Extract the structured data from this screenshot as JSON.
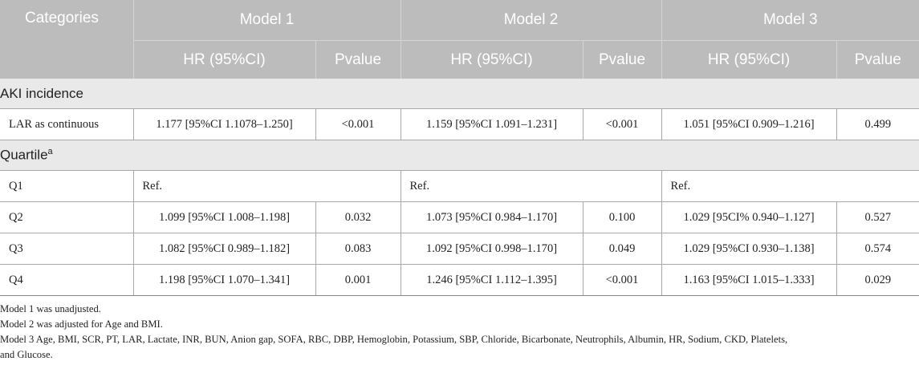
{
  "header": {
    "categories": "Categories",
    "models": [
      "Model 1",
      "Model 2",
      "Model 3"
    ],
    "hr_label": "HR (95%CI)",
    "p_label": "Pvalue"
  },
  "sections": {
    "aki": "AKI incidence",
    "quartile": "Quartile",
    "quartile_sup": "a"
  },
  "rows": {
    "lar": {
      "label": "LAR as continuous",
      "m1_hr": "1.177 [95%CI 1.1078–1.250]",
      "m1_p": "<0.001",
      "m2_hr": "1.159 [95%CI 1.091–1.231]",
      "m2_p": "<0.001",
      "m3_hr": "1.051 [95%CI 0.909–1.216]",
      "m3_p": "0.499"
    },
    "q1": {
      "label": "Q1",
      "m1": "Ref.",
      "m2": "Ref.",
      "m3": "Ref."
    },
    "q2": {
      "label": "Q2",
      "m1_hr": "1.099 [95%CI 1.008–1.198]",
      "m1_p": "0.032",
      "m2_hr": "1.073 [95%CI 0.984–1.170]",
      "m2_p": "0.100",
      "m3_hr": "1.029 [95CI% 0.940–1.127]",
      "m3_p": "0.527"
    },
    "q3": {
      "label": "Q3",
      "m1_hr": "1.082 [95%CI 0.989–1.182]",
      "m1_p": "0.083",
      "m2_hr": "1.092 [95%CI 0.998–1.170]",
      "m2_p": "0.049",
      "m3_hr": "1.029 [95%CI 0.930–1.138]",
      "m3_p": "0.574"
    },
    "q4": {
      "label": "Q4",
      "m1_hr": "1.198 [95%CI 1.070–1.341]",
      "m1_p": "0.001",
      "m2_hr": "1.246 [95%CI 1.112–1.395]",
      "m2_p": "<0.001",
      "m3_hr": "1.163 [95%CI 1.015–1.333]",
      "m3_p": "0.029"
    }
  },
  "notes": [
    "Model 1 was unadjusted.",
    "Model 2 was adjusted for Age and BMI.",
    "Model 3 Age, BMI, SCR, PT, LAR, Lactate, INR, BUN, Anion gap, SOFA, RBC, DBP, Hemoglobin, Potassium, SBP, Chloride, Bicarbonate, Neutrophils, Albumin, HR, Sodium, CKD, Platelets,",
    "and Glucose."
  ]
}
